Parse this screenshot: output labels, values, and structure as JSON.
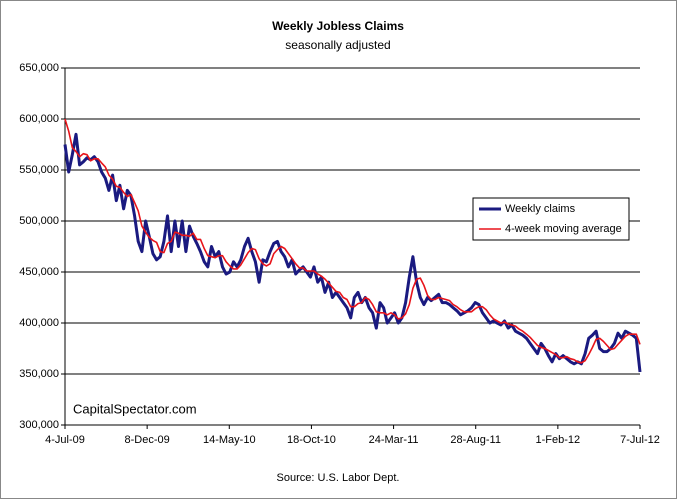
{
  "chart_data": {
    "type": "line",
    "title": "Weekly Jobless Claims",
    "subtitle": "seasonally adjusted",
    "source": "Source: U.S. Labor Dept.",
    "watermark": "CapitalSpectator.com",
    "x": [
      "2009-07-04",
      "2009-07-11",
      "2009-07-18",
      "2009-07-25",
      "2009-08-01",
      "2009-08-08",
      "2009-08-15",
      "2009-08-22",
      "2009-08-29",
      "2009-09-05",
      "2009-09-12",
      "2009-09-19",
      "2009-09-26",
      "2009-10-03",
      "2009-10-10",
      "2009-10-17",
      "2009-10-24",
      "2009-10-31",
      "2009-11-07",
      "2009-11-14",
      "2009-11-21",
      "2009-11-28",
      "2009-12-05",
      "2009-12-12",
      "2009-12-19",
      "2009-12-26",
      "2010-01-02",
      "2010-01-09",
      "2010-01-16",
      "2010-01-23",
      "2010-01-30",
      "2010-02-06",
      "2010-02-13",
      "2010-02-20",
      "2010-02-27",
      "2010-03-06",
      "2010-03-13",
      "2010-03-20",
      "2010-03-27",
      "2010-04-03",
      "2010-04-10",
      "2010-04-17",
      "2010-04-24",
      "2010-05-01",
      "2010-05-08",
      "2010-05-15",
      "2010-05-22",
      "2010-05-29",
      "2010-06-05",
      "2010-06-12",
      "2010-06-19",
      "2010-06-26",
      "2010-07-03",
      "2010-07-10",
      "2010-07-17",
      "2010-07-24",
      "2010-07-31",
      "2010-08-07",
      "2010-08-14",
      "2010-08-21",
      "2010-08-28",
      "2010-09-04",
      "2010-09-11",
      "2010-09-18",
      "2010-09-25",
      "2010-10-02",
      "2010-10-09",
      "2010-10-16",
      "2010-10-23",
      "2010-10-30",
      "2010-11-06",
      "2010-11-13",
      "2010-11-20",
      "2010-11-27",
      "2010-12-04",
      "2010-12-11",
      "2010-12-18",
      "2010-12-25",
      "2011-01-01",
      "2011-01-08",
      "2011-01-15",
      "2011-01-22",
      "2011-01-29",
      "2011-02-05",
      "2011-02-12",
      "2011-02-19",
      "2011-02-26",
      "2011-03-05",
      "2011-03-12",
      "2011-03-19",
      "2011-03-26",
      "2011-04-02",
      "2011-04-09",
      "2011-04-16",
      "2011-04-23",
      "2011-04-30",
      "2011-05-07",
      "2011-05-14",
      "2011-05-21",
      "2011-05-28",
      "2011-06-04",
      "2011-06-11",
      "2011-06-18",
      "2011-06-25",
      "2011-07-02",
      "2011-07-09",
      "2011-07-16",
      "2011-07-23",
      "2011-07-30",
      "2011-08-06",
      "2011-08-13",
      "2011-08-20",
      "2011-08-27",
      "2011-09-03",
      "2011-09-10",
      "2011-09-17",
      "2011-09-24",
      "2011-10-01",
      "2011-10-08",
      "2011-10-15",
      "2011-10-22",
      "2011-10-29",
      "2011-11-05",
      "2011-11-12",
      "2011-11-19",
      "2011-11-26",
      "2011-12-03",
      "2011-12-10",
      "2011-12-17",
      "2011-12-24",
      "2011-12-31",
      "2012-01-07",
      "2012-01-14",
      "2012-01-21",
      "2012-01-28",
      "2012-02-04",
      "2012-02-11",
      "2012-02-18",
      "2012-02-25",
      "2012-03-03",
      "2012-03-10",
      "2012-03-17",
      "2012-03-24",
      "2012-03-31",
      "2012-04-07",
      "2012-04-14",
      "2012-04-21",
      "2012-04-28",
      "2012-05-05",
      "2012-05-12",
      "2012-05-19",
      "2012-05-26",
      "2012-06-02",
      "2012-06-09",
      "2012-06-16",
      "2012-06-23",
      "2012-06-30",
      "2012-07-07"
    ],
    "series": [
      {
        "name": "Weekly claims",
        "color": "#1a1a80",
        "width": 3,
        "values": [
          575000,
          548000,
          565000,
          585000,
          555000,
          558000,
          562000,
          560000,
          563000,
          558000,
          548000,
          542000,
          530000,
          545000,
          520000,
          535000,
          512000,
          530000,
          525000,
          505000,
          480000,
          470000,
          500000,
          485000,
          468000,
          462000,
          465000,
          480000,
          505000,
          470000,
          500000,
          475000,
          500000,
          470000,
          495000,
          485000,
          478000,
          470000,
          460000,
          455000,
          475000,
          465000,
          470000,
          455000,
          448000,
          450000,
          460000,
          455000,
          462000,
          475000,
          483000,
          470000,
          460000,
          440000,
          462000,
          460000,
          470000,
          478000,
          480000,
          470000,
          465000,
          455000,
          462000,
          448000,
          452000,
          455000,
          450000,
          445000,
          455000,
          440000,
          445000,
          430000,
          440000,
          425000,
          430000,
          425000,
          420000,
          415000,
          405000,
          425000,
          430000,
          420000,
          425000,
          415000,
          410000,
          395000,
          420000,
          415000,
          400000,
          405000,
          410000,
          400000,
          405000,
          420000,
          445000,
          465000,
          440000,
          425000,
          418000,
          425000,
          422000,
          425000,
          428000,
          420000,
          420000,
          418000,
          415000,
          412000,
          408000,
          410000,
          412000,
          415000,
          420000,
          418000,
          410000,
          405000,
          400000,
          402000,
          400000,
          398000,
          402000,
          395000,
          398000,
          392000,
          390000,
          388000,
          385000,
          380000,
          375000,
          370000,
          380000,
          375000,
          368000,
          362000,
          370000,
          365000,
          368000,
          365000,
          362000,
          360000,
          362000,
          360000,
          370000,
          385000,
          388000,
          392000,
          375000,
          372000,
          372000,
          375000,
          380000,
          390000,
          385000,
          392000,
          390000,
          388000,
          385000,
          352000
        ]
      },
      {
        "name": "4-week moving average",
        "color": "#e8141a",
        "width": 1.6,
        "values": [
          600000,
          588000,
          572000,
          568000,
          563000,
          566000,
          565000,
          559000,
          561000,
          561000,
          557000,
          553000,
          545000,
          541000,
          534000,
          533000,
          528000,
          524000,
          526000,
          518000,
          510000,
          495000,
          489000,
          484000,
          481000,
          479000,
          470000,
          469000,
          478000,
          480000,
          489000,
          488000,
          486000,
          486000,
          485000,
          488000,
          482000,
          482000,
          473000,
          466000,
          465000,
          464000,
          466000,
          466000,
          460000,
          456000,
          453000,
          453000,
          457000,
          463000,
          469000,
          473000,
          472000,
          463000,
          458000,
          456000,
          458000,
          468000,
          472000,
          475000,
          473000,
          468000,
          463000,
          458000,
          454000,
          454000,
          451000,
          451000,
          451000,
          448000,
          446000,
          443000,
          439000,
          435000,
          431000,
          430000,
          425000,
          423000,
          416000,
          416000,
          419000,
          420000,
          425000,
          423000,
          418000,
          411000,
          410000,
          410000,
          408000,
          410000,
          408000,
          404000,
          405000,
          409000,
          418000,
          434000,
          443000,
          444000,
          437000,
          427000,
          423000,
          423000,
          425000,
          424000,
          423000,
          422000,
          418000,
          416000,
          413000,
          411000,
          411000,
          411000,
          414000,
          416000,
          416000,
          413000,
          408000,
          404000,
          402000,
          400000,
          401000,
          399000,
          398000,
          397000,
          394000,
          392000,
          389000,
          386000,
          382000,
          378000,
          376000,
          375000,
          373000,
          371000,
          369000,
          366000,
          366000,
          367000,
          365000,
          364000,
          362000,
          361000,
          363000,
          369000,
          376000,
          384000,
          385000,
          382000,
          378000,
          374000,
          375000,
          379000,
          383000,
          387000,
          389000,
          389000,
          389000,
          379000
        ]
      }
    ],
    "xlim": [
      "2009-07-04",
      "2012-07-07"
    ],
    "xticks": [
      {
        "value": "2009-07-04",
        "label": "4-Jul-09"
      },
      {
        "value": "2009-12-08",
        "label": "8-Dec-09"
      },
      {
        "value": "2010-05-14",
        "label": "14-May-10"
      },
      {
        "value": "2010-10-18",
        "label": "18-Oct-10"
      },
      {
        "value": "2011-03-24",
        "label": "24-Mar-11"
      },
      {
        "value": "2011-08-28",
        "label": "28-Aug-11"
      },
      {
        "value": "2012-02-01",
        "label": "1-Feb-12"
      },
      {
        "value": "2012-07-07",
        "label": "7-Jul-12"
      }
    ],
    "ylim": [
      300000,
      650000
    ],
    "yticks": [
      {
        "value": 300000,
        "label": "300,000"
      },
      {
        "value": 350000,
        "label": "350,000"
      },
      {
        "value": 400000,
        "label": "400,000"
      },
      {
        "value": 450000,
        "label": "450,000"
      },
      {
        "value": 500000,
        "label": "500,000"
      },
      {
        "value": 550000,
        "label": "550,000"
      },
      {
        "value": 600000,
        "label": "600,000"
      },
      {
        "value": 650000,
        "label": "650,000"
      }
    ],
    "grid": true,
    "legend": "right"
  }
}
